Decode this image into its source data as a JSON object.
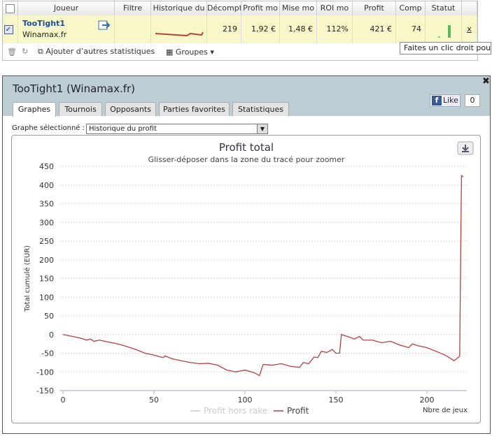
{
  "table": {
    "headers": [
      "Joueur",
      "Filtre",
      "Historique du",
      "Décompte",
      "Profit mo",
      "Mise mo",
      "ROI mo",
      "Profit",
      "Comp",
      "Statut"
    ],
    "row": {
      "player": "TooTight1",
      "site": "Winamax.fr",
      "values": [
        "219",
        "1,92 €",
        "1,48 €",
        "112%",
        "421 €",
        "74"
      ],
      "remove": "x"
    }
  },
  "toolbar": {
    "add_stats": "Ajouter d’autres statistiques",
    "groups": "Groupes"
  },
  "tooltip": "Faites un clic droit pour",
  "panel": {
    "title": "TooTight1 (Winamax.fr)",
    "tabs": [
      "Graphes",
      "Tournois",
      "Opposants",
      "Parties favorites",
      "Statistiques"
    ],
    "like": "Like",
    "like_count": "0",
    "graph_label": "Graphe sélectionné :",
    "graph_select": "Historique du profit"
  },
  "chart_data": {
    "type": "line",
    "title": "Profit total",
    "subtitle": "Glisser-déposer dans la zone du tracé pour zoomer",
    "x_label": "Nbre de jeux",
    "y_label": "Total cumulé (EUR)",
    "x": [
      0,
      5,
      10,
      13,
      15,
      17,
      20,
      25,
      30,
      35,
      40,
      45,
      50,
      55,
      56,
      60,
      65,
      70,
      75,
      80,
      85,
      90,
      95,
      100,
      105,
      108,
      110,
      115,
      120,
      125,
      130,
      132,
      135,
      138,
      140,
      142,
      145,
      148,
      150,
      152,
      153,
      158,
      160,
      163,
      165,
      170,
      175,
      180,
      185,
      190,
      192,
      195,
      200,
      205,
      210,
      215,
      218,
      219,
      220
    ],
    "series": [
      {
        "name": "Profit hors rake",
        "color": "#cccccc",
        "visible": false
      },
      {
        "name": "Profit",
        "color": "#b5413f",
        "values": [
          0,
          -5,
          -10,
          -15,
          -12,
          -18,
          -15,
          -20,
          -25,
          -32,
          -40,
          -50,
          -55,
          -62,
          -57,
          -65,
          -70,
          -75,
          -78,
          -77,
          -82,
          -95,
          -100,
          -95,
          -102,
          -110,
          -80,
          -82,
          -78,
          -85,
          -88,
          -75,
          -78,
          -60,
          -62,
          -45,
          -48,
          -40,
          -50,
          -50,
          0,
          -8,
          -12,
          -5,
          -15,
          -15,
          -22,
          -18,
          -28,
          -35,
          -25,
          -30,
          -35,
          -45,
          -55,
          -70,
          -58,
          425,
          422
        ]
      }
    ],
    "xlim": [
      -2,
      222
    ],
    "xticks": [
      0,
      50,
      100,
      150,
      200
    ],
    "ylim": [
      -150,
      450
    ],
    "yticks": [
      -150,
      -100,
      -50,
      0,
      50,
      100,
      150,
      200,
      250,
      300,
      350,
      400,
      450
    ],
    "grid": true
  }
}
